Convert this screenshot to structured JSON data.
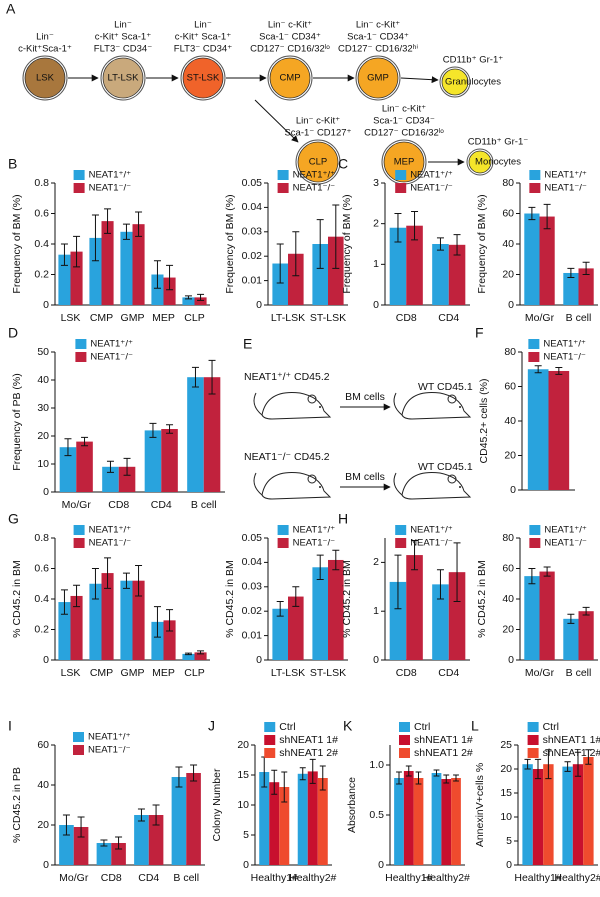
{
  "diagram_a": {
    "letter": "A",
    "nodes": [
      {
        "label": "LSK",
        "markers": [
          "Lin⁻",
          "c-Kit⁺Sca-1⁺"
        ]
      },
      {
        "label": "LT-LSK",
        "markers": [
          "Lin⁻",
          "c-Kit⁺ Sca-1⁺",
          "FLT3⁻ CD34⁻"
        ]
      },
      {
        "label": "ST-LSK",
        "markers": [
          "Lin⁻",
          "c-Kit⁺ Sca-1⁺",
          "FLT3⁻ CD34⁺"
        ]
      },
      {
        "label": "CMP",
        "markers": [
          "Lin⁻ c-Kit⁺",
          "Sca-1⁻ CD34⁺",
          "CD127⁻ CD16/32ˡᵒ"
        ]
      },
      {
        "label": "GMP",
        "markers": [
          "Lin⁻ c-Kit⁺",
          "Sca-1⁻ CD34⁺",
          "CD127⁻ CD16/32ʰⁱ"
        ]
      },
      {
        "label": "Granulocytes",
        "markers": [
          "CD11b⁺ Gr-1⁺"
        ]
      },
      {
        "label": "CLP",
        "markers": [
          "Lin⁻ c-Kit⁺",
          "Sca-1⁻ CD127⁺"
        ]
      },
      {
        "label": "MEP",
        "markers": [
          "Lin⁻ c-Kit⁺",
          "Sca-1⁻ CD34⁻",
          "CD127⁻ CD16/32ˡᵒ"
        ]
      },
      {
        "label": "Monocytes",
        "markers": [
          "CD11b⁺ Gr-1⁻"
        ]
      }
    ]
  },
  "diagram_e": {
    "letter": "E",
    "rows": [
      {
        "donor": "NEAT1⁺/⁺ CD45.2",
        "arrow": "BM cells",
        "recipient": "WT CD45.1"
      },
      {
        "donor": "NEAT1⁻/⁻ CD45.2",
        "arrow": "BM cells",
        "recipient": "WT CD45.1"
      }
    ]
  },
  "chart_data": [
    {
      "type": "bar",
      "letter": "B",
      "ylabel": "Frequency of BM (%)",
      "categories": [
        "LSK",
        "CMP",
        "GMP",
        "MEP",
        "CLP"
      ],
      "ylim": [
        0,
        0.8
      ],
      "yticks": [
        0,
        0.2,
        0.4,
        0.6,
        0.8
      ],
      "legend": "upper left",
      "series": [
        {
          "name": "NEAT1⁺/⁺",
          "color": "#29a3dd",
          "values": [
            0.33,
            0.44,
            0.48,
            0.2,
            0.05
          ],
          "errors": [
            0.07,
            0.15,
            0.05,
            0.09,
            0.01
          ]
        },
        {
          "name": "NEAT1⁻/⁻",
          "color": "#c1223d",
          "values": [
            0.35,
            0.55,
            0.53,
            0.18,
            0.05
          ],
          "errors": [
            0.1,
            0.08,
            0.08,
            0.08,
            0.02
          ]
        }
      ]
    },
    {
      "type": "bar",
      "ylabel": "Frequency of BM (%)",
      "categories": [
        "LT-LSK",
        "ST-LSK"
      ],
      "ylim": [
        0,
        0.05
      ],
      "yticks": [
        0,
        0.01,
        0.02,
        0.03,
        0.04,
        0.05
      ],
      "legend": "upper left",
      "series": [
        {
          "name": "NEAT1⁺/⁺",
          "color": "#29a3dd",
          "values": [
            0.017,
            0.025
          ],
          "errors": [
            0.008,
            0.01
          ]
        },
        {
          "name": "NEAT1⁻/⁻",
          "color": "#c1223d",
          "values": [
            0.021,
            0.028
          ],
          "errors": [
            0.009,
            0.013
          ]
        }
      ]
    },
    {
      "type": "bar",
      "letter": "C",
      "ylabel": "Frequency of BM (%)",
      "categories": [
        "CD8",
        "CD4"
      ],
      "ylim": [
        0,
        3
      ],
      "yticks": [
        0,
        1,
        2,
        3
      ],
      "legend": "upper left",
      "series": [
        {
          "name": "NEAT1⁺/⁺",
          "color": "#29a3dd",
          "values": [
            1.9,
            1.5
          ],
          "errors": [
            0.35,
            0.15
          ]
        },
        {
          "name": "NEAT1⁻/⁻",
          "color": "#c1223d",
          "values": [
            1.95,
            1.48
          ],
          "errors": [
            0.35,
            0.25
          ]
        }
      ]
    },
    {
      "type": "bar",
      "ylabel": "Frequency of BM (%)",
      "categories": [
        "Mo/Gr",
        "B cell"
      ],
      "ylim": [
        0,
        80
      ],
      "yticks": [
        0,
        20,
        40,
        60,
        80
      ],
      "legend": "upper left",
      "series": [
        {
          "name": "NEAT1⁺/⁺",
          "color": "#29a3dd",
          "values": [
            60,
            21
          ],
          "errors": [
            4,
            3
          ]
        },
        {
          "name": "NEAT1⁻/⁻",
          "color": "#c1223d",
          "values": [
            58,
            24
          ],
          "errors": [
            8,
            4
          ]
        }
      ]
    },
    {
      "type": "bar",
      "letter": "D",
      "ylabel": "Frequency of PB (%)",
      "categories": [
        "Mo/Gr",
        "CD8",
        "CD4",
        "B cell"
      ],
      "ylim": [
        0,
        50
      ],
      "yticks": [
        0,
        10,
        20,
        30,
        40,
        50
      ],
      "legend": "upper left",
      "series": [
        {
          "name": "NEAT1⁺/⁺",
          "color": "#29a3dd",
          "values": [
            16,
            9,
            22,
            41
          ],
          "errors": [
            3,
            2,
            2.5,
            3.5
          ]
        },
        {
          "name": "NEAT1⁻/⁻",
          "color": "#c1223d",
          "values": [
            18,
            9,
            22.5,
            41
          ],
          "errors": [
            1.5,
            3,
            1.5,
            6
          ]
        }
      ]
    },
    {
      "type": "bar",
      "letter": "F",
      "ylabel": "CD45.2+ cells  (%)",
      "categories": [
        null
      ],
      "ylim": [
        0,
        80
      ],
      "yticks": [
        0,
        20,
        40,
        60,
        80
      ],
      "legend": "upper left",
      "series": [
        {
          "name": "NEAT1⁺/⁺",
          "color": "#29a3dd",
          "values": [
            70
          ],
          "errors": [
            2
          ]
        },
        {
          "name": "NEAT1⁻/⁻",
          "color": "#c1223d",
          "values": [
            69
          ],
          "errors": [
            2
          ]
        }
      ]
    },
    {
      "type": "bar",
      "letter": "G",
      "ylabel": "% CD45.2 in BM",
      "categories": [
        "LSK",
        "CMP",
        "GMP",
        "MEP",
        "CLP"
      ],
      "ylim": [
        0,
        0.8
      ],
      "yticks": [
        0,
        0.2,
        0.4,
        0.6,
        0.8
      ],
      "legend": "upper left",
      "series": [
        {
          "name": "NEAT1⁺/⁺",
          "color": "#29a3dd",
          "values": [
            0.38,
            0.5,
            0.52,
            0.25,
            0.04
          ],
          "errors": [
            0.08,
            0.1,
            0.05,
            0.1,
            0.005
          ]
        },
        {
          "name": "NEAT1⁻/⁻",
          "color": "#c1223d",
          "values": [
            0.42,
            0.57,
            0.52,
            0.26,
            0.05
          ],
          "errors": [
            0.07,
            0.1,
            0.1,
            0.07,
            0.01
          ]
        }
      ]
    },
    {
      "type": "bar",
      "ylabel": "% CD45.2 in BM",
      "categories": [
        "LT-LSK",
        "ST-LSK"
      ],
      "ylim": [
        0,
        0.05
      ],
      "yticks": [
        0,
        0.01,
        0.02,
        0.03,
        0.04,
        0.05
      ],
      "legend": "upper left",
      "series": [
        {
          "name": "NEAT1⁺/⁺",
          "color": "#29a3dd",
          "values": [
            0.021,
            0.038
          ],
          "errors": [
            0.003,
            0.005
          ]
        },
        {
          "name": "NEAT1⁻/⁻",
          "color": "#c1223d",
          "values": [
            0.026,
            0.041
          ],
          "errors": [
            0.004,
            0.004
          ]
        }
      ]
    },
    {
      "type": "bar",
      "letter": "H",
      "ylabel": "% CD45.2 in BM",
      "categories": [
        "CD8",
        "CD4"
      ],
      "ylim": [
        0,
        2.5
      ],
      "yticks": [
        0,
        1,
        2
      ],
      "legend": "upper left",
      "series": [
        {
          "name": "NEAT1⁺/⁺",
          "color": "#29a3dd",
          "values": [
            1.6,
            1.55
          ],
          "errors": [
            0.55,
            0.3
          ]
        },
        {
          "name": "NEAT1⁻/⁻",
          "color": "#c1223d",
          "values": [
            2.15,
            1.8
          ],
          "errors": [
            0.3,
            0.6
          ]
        }
      ]
    },
    {
      "type": "bar",
      "ylabel": "% CD45.2 in BM",
      "categories": [
        "Mo/Gr",
        "B cell"
      ],
      "ylim": [
        0,
        80
      ],
      "yticks": [
        0,
        20,
        40,
        60,
        80
      ],
      "legend": "upper left",
      "series": [
        {
          "name": "NEAT1⁺/⁺",
          "color": "#29a3dd",
          "values": [
            55,
            27
          ],
          "errors": [
            5,
            3
          ]
        },
        {
          "name": "NEAT1⁻/⁻",
          "color": "#c1223d",
          "values": [
            58,
            32
          ],
          "errors": [
            3,
            2.5
          ]
        }
      ]
    },
    {
      "type": "bar",
      "letter": "I",
      "ylabel": "% CD45.2 in PB",
      "categories": [
        "Mo/Gr",
        "CD8",
        "CD4",
        "B cell"
      ],
      "ylim": [
        0,
        60
      ],
      "yticks": [
        0,
        20,
        40,
        60
      ],
      "legend": "upper left",
      "series": [
        {
          "name": "NEAT1⁺/⁺",
          "color": "#29a3dd",
          "values": [
            20,
            11,
            25,
            44
          ],
          "errors": [
            5,
            1.5,
            3,
            5
          ]
        },
        {
          "name": "NEAT1⁻/⁻",
          "color": "#c1223d",
          "values": [
            19,
            11,
            25,
            46
          ],
          "errors": [
            5,
            3,
            5,
            4
          ]
        }
      ]
    },
    {
      "type": "bar",
      "letter": "J",
      "ylabel": "Colony Number",
      "categories": [
        "Healthy1#",
        "Healthy2#"
      ],
      "ylim": [
        0,
        20
      ],
      "yticks": [
        0,
        5,
        10,
        15,
        20
      ],
      "legend": "upper left",
      "series": [
        {
          "name": "Ctrl",
          "color": "#29a3dd",
          "values": [
            15.5,
            15.2
          ],
          "errors": [
            2.5,
            1
          ]
        },
        {
          "name": "shNEAT1 1#",
          "color": "#c8102e",
          "values": [
            13.8,
            15.6
          ],
          "errors": [
            2,
            2
          ]
        },
        {
          "name": "shNEAT1 2#",
          "color": "#ef4b2e",
          "values": [
            13,
            14.5
          ],
          "errors": [
            2.5,
            2
          ]
        }
      ]
    },
    {
      "type": "bar",
      "letter": "K",
      "ylabel": "Absorbance",
      "categories": [
        "Healthy1#",
        "Healthy2#"
      ],
      "ylim": [
        0,
        1.2
      ],
      "yticks": [
        0,
        0.5,
        {
          "value": 1,
          "label": "1.0"
        }
      ],
      "legend": "upper left",
      "series": [
        {
          "name": "Ctrl",
          "color": "#29a3dd",
          "values": [
            0.87,
            0.92
          ],
          "errors": [
            0.06,
            0.03
          ]
        },
        {
          "name": "shNEAT1 1#",
          "color": "#c8102e",
          "values": [
            0.94,
            0.86
          ],
          "errors": [
            0.05,
            0.04
          ]
        },
        {
          "name": "shNEAT1 2#",
          "color": "#ef4b2e",
          "values": [
            0.87,
            0.87
          ],
          "errors": [
            0.06,
            0.03
          ]
        }
      ]
    },
    {
      "type": "bar",
      "letter": "L",
      "ylabel": "AnnexinV+cells %",
      "categories": [
        "Healthy1#",
        "Healthy2#"
      ],
      "ylim": [
        0,
        25
      ],
      "yticks": [
        0,
        5,
        10,
        15,
        20,
        25
      ],
      "legend": "upper left",
      "series": [
        {
          "name": "Ctrl",
          "color": "#29a3dd",
          "values": [
            21,
            20.5
          ],
          "errors": [
            1,
            1
          ]
        },
        {
          "name": "shNEAT1 1#",
          "color": "#c8102e",
          "values": [
            20,
            21
          ],
          "errors": [
            2,
            2.5
          ]
        },
        {
          "name": "shNEAT1 2#",
          "color": "#ef4b2e",
          "values": [
            21,
            22.5
          ],
          "errors": [
            3,
            1.5
          ]
        }
      ]
    }
  ]
}
